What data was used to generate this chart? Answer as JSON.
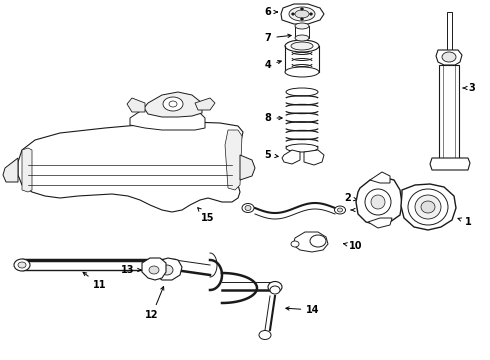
{
  "bg_color": "#ffffff",
  "line_color": "#1a1a1a",
  "figsize": [
    4.9,
    3.6
  ],
  "dpi": 100,
  "label_positions": {
    "1": [
      464,
      222,
      444,
      222
    ],
    "2": [
      352,
      198,
      362,
      198
    ],
    "3": [
      466,
      88,
      452,
      88
    ],
    "4": [
      270,
      65,
      284,
      65
    ],
    "5": [
      270,
      150,
      284,
      150
    ],
    "6": [
      270,
      12,
      284,
      12
    ],
    "7": [
      270,
      38,
      284,
      38
    ],
    "8": [
      270,
      110,
      288,
      110
    ],
    "9": [
      358,
      208,
      344,
      208
    ],
    "10": [
      358,
      245,
      348,
      245
    ],
    "11": [
      110,
      283,
      122,
      276
    ],
    "12": [
      150,
      315,
      150,
      302
    ],
    "13": [
      148,
      268,
      158,
      272
    ],
    "14": [
      315,
      308,
      302,
      304
    ],
    "15": [
      198,
      218,
      198,
      207
    ]
  }
}
